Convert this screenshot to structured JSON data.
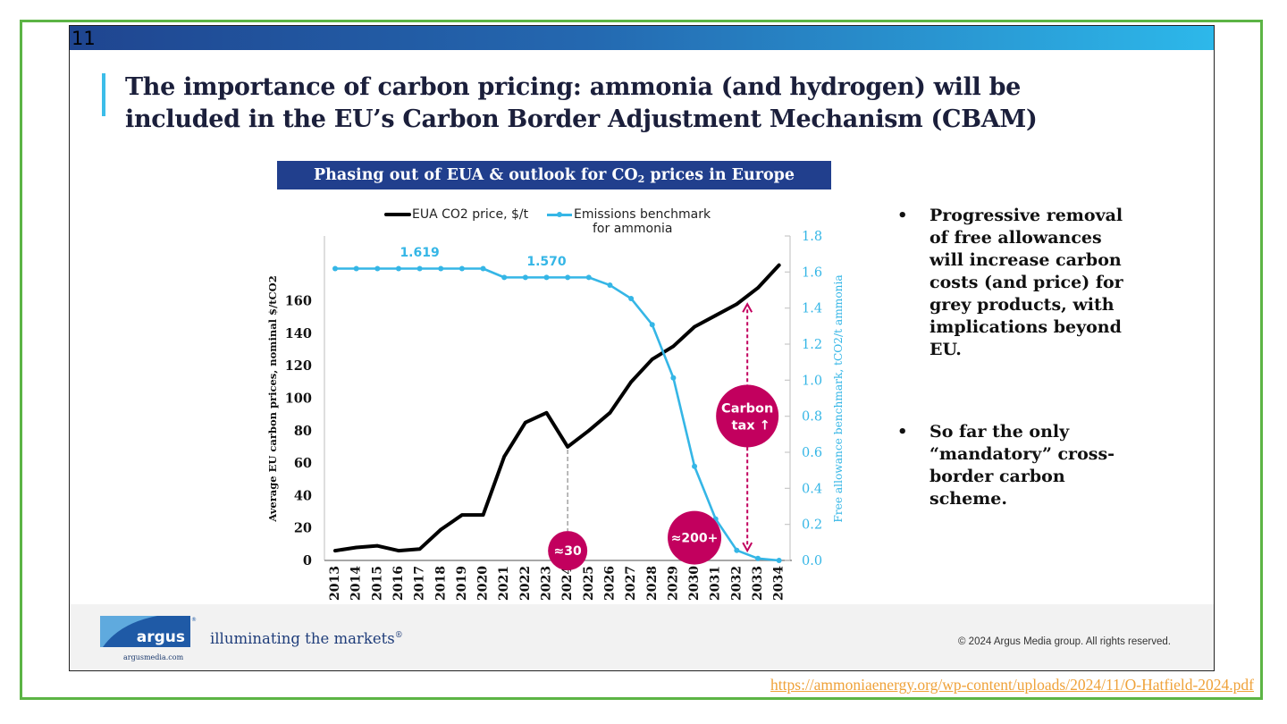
{
  "slide": {
    "number": "11",
    "title_lines": [
      "The importance of carbon pricing: ammonia (and hydrogen) will be",
      "included in the EU’s Carbon Border Adjustment Mechanism (CBAM)"
    ]
  },
  "chart_banner": {
    "title_prefix": "Phasing out of EUA & outlook for CO",
    "title_subscript": "2",
    "title_suffix": " prices in Europe"
  },
  "legend": {
    "eua_label": "EUA CO2 price, $/t",
    "benchmark_label_line1": "Emissions benchmark",
    "benchmark_label_line2": "for ammonia"
  },
  "bullets": [
    {
      "marker": "•",
      "lines": [
        "Progressive removal",
        "of free allowances",
        "will increase carbon",
        "costs (and price) for",
        "grey products, with",
        "implications beyond",
        "EU."
      ]
    },
    {
      "marker": "•",
      "lines": [
        "So far the only",
        "“mandatory” cross-",
        "border carbon",
        "scheme."
      ]
    }
  ],
  "footer": {
    "logo_text": "argus",
    "logo_mark": "®",
    "logo_sub": "argusmedia.com",
    "tagline": "illuminating the markets",
    "tagline_mark": "®",
    "copyright": "© 2024 Argus Media group. All rights reserved."
  },
  "source_link": "https://ammoniaenergy.org/wp-content/uploads/2024/11/O-Hatfield-2024.pdf",
  "colors": {
    "brand_blue": "#213f8d",
    "accent_cyan": "#35b6e6",
    "highlight_magenta": "#c2005e",
    "frame_green": "#5cb445",
    "link_orange": "#efa23a"
  },
  "chart_data": {
    "type": "line",
    "title": "Phasing out of EUA & outlook for CO2 prices in Europe",
    "categories": [
      "2013",
      "2014",
      "2015",
      "2016",
      "2017",
      "2018",
      "2019",
      "2020",
      "2021",
      "2022",
      "2023",
      "2024",
      "2025",
      "2026",
      "2027",
      "2028",
      "2029",
      "2030",
      "2031",
      "2032",
      "2033",
      "2034"
    ],
    "series": [
      {
        "name": "EUA CO2 price, $/t",
        "axis": "left",
        "color": "#000000",
        "values": [
          6,
          8,
          9,
          6,
          7,
          19,
          28,
          28,
          64,
          85,
          91,
          70,
          80,
          91,
          110,
          124,
          132,
          144,
          151,
          158,
          168,
          182
        ]
      },
      {
        "name": "Emissions benchmark for ammonia",
        "axis": "right",
        "color": "#35b6e6",
        "markers": true,
        "values": [
          1.619,
          1.619,
          1.619,
          1.619,
          1.619,
          1.619,
          1.619,
          1.619,
          1.57,
          1.57,
          1.57,
          1.57,
          1.57,
          1.527,
          1.453,
          1.308,
          1.013,
          0.522,
          0.23,
          0.056,
          0.011,
          0.0
        ]
      }
    ],
    "xlabel": "",
    "ylabel": "Average EU carbon prices, nominal $/tCO2",
    "ylim": [
      0,
      200
    ],
    "yticks": [
      0,
      20,
      40,
      60,
      80,
      100,
      120,
      140,
      160
    ],
    "y2label": "Free allowance benchmark, tCO2/t ammonia",
    "y2lim": [
      0,
      1.8
    ],
    "y2ticks": [
      "0.0",
      "0.2",
      "0.4",
      "0.6",
      "0.8",
      "1.0",
      "1.2",
      "1.4",
      "1.6",
      "1.8"
    ],
    "grid": false,
    "legend_position": "top",
    "annotations": [
      {
        "type": "value-label",
        "text": "1.619",
        "x": 2017,
        "y": 1.71,
        "axis": "right"
      },
      {
        "type": "value-label",
        "text": "1.570",
        "x": 2023,
        "y": 1.66,
        "axis": "right"
      },
      {
        "type": "bubble",
        "size": "small",
        "text": "≈30",
        "x": 2024,
        "y": 6,
        "axis": "left",
        "connector_from": 70
      },
      {
        "type": "bubble",
        "size": "medium",
        "text": "≈200+",
        "x": 2030,
        "y": 14,
        "axis": "left"
      },
      {
        "type": "bubble",
        "size": "large",
        "text": "Carbon",
        "text2": "tax ↑",
        "x": 2032.5,
        "y": 89,
        "axis": "left",
        "arrow_from": 6,
        "arrow_to": 158
      }
    ]
  }
}
